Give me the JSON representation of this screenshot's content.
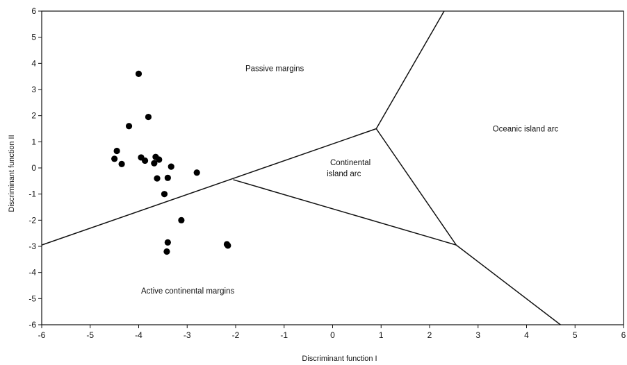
{
  "chart_data": {
    "type": "scatter",
    "title": "",
    "xlabel": "Discriminant function I",
    "ylabel": "Discriminant function II",
    "xlim": [
      -6,
      6
    ],
    "ylim": [
      -6,
      6
    ],
    "xticks": [
      -6,
      -5,
      -4,
      -3,
      -2,
      -1,
      0,
      1,
      2,
      3,
      4,
      5,
      6
    ],
    "yticks": [
      6,
      5,
      4,
      3,
      2,
      1,
      0,
      -1,
      -2,
      -3,
      -4,
      -5,
      -6
    ],
    "grid": false,
    "legend": "none",
    "series": [
      {
        "points": [
          [
            -4.0,
            3.6
          ],
          [
            -3.8,
            1.95
          ],
          [
            -4.2,
            1.6
          ],
          [
            -4.45,
            0.65
          ],
          [
            -4.5,
            0.35
          ],
          [
            -4.35,
            0.15
          ],
          [
            -3.95,
            0.4
          ],
          [
            -3.87,
            0.28
          ],
          [
            -3.65,
            0.42
          ],
          [
            -3.58,
            0.32
          ],
          [
            -3.68,
            0.18
          ],
          [
            -3.33,
            0.05
          ],
          [
            -3.62,
            -0.4
          ],
          [
            -3.4,
            -0.38
          ],
          [
            -3.47,
            -1.0
          ],
          [
            -2.8,
            -0.18
          ],
          [
            -3.12,
            -2.0
          ],
          [
            -3.4,
            -2.85
          ],
          [
            -3.42,
            -3.2
          ],
          [
            -2.18,
            -2.92
          ],
          [
            -2.16,
            -2.97
          ]
        ]
      }
    ],
    "boundaries": [
      [
        [
          -6,
          -2.95
        ],
        [
          0.9,
          1.5
        ]
      ],
      [
        [
          0.9,
          1.5
        ],
        [
          2.3,
          6
        ]
      ],
      [
        [
          0.9,
          1.5
        ],
        [
          2.55,
          -2.95
        ]
      ],
      [
        [
          -2.05,
          -0.45
        ],
        [
          2.55,
          -2.95
        ]
      ],
      [
        [
          2.55,
          -2.95
        ],
        [
          4.7,
          -6
        ]
      ]
    ],
    "region_labels": [
      {
        "text": "Passive margins",
        "x": -1.8,
        "y": 3.7
      },
      {
        "text": "Oceanic island arc",
        "x": 3.3,
        "y": 1.4
      },
      {
        "text": "Continental",
        "x": -0.05,
        "y": 0.1
      },
      {
        "text": "island arc",
        "x": -0.12,
        "y": -0.32
      },
      {
        "text": "Active continental margins",
        "x": -3.95,
        "y": -4.8
      }
    ]
  }
}
